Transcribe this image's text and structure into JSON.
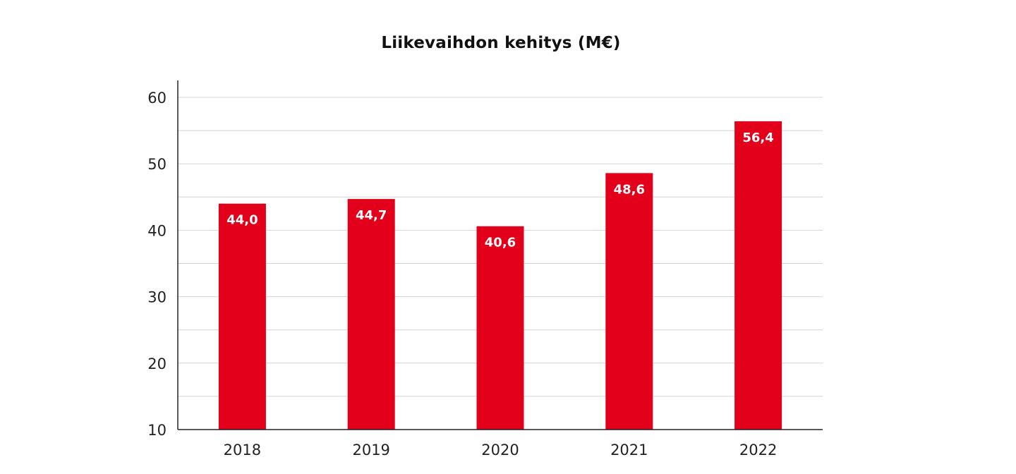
{
  "chart_data": {
    "type": "bar",
    "title": "Liikevaihdon kehitys (M€)",
    "xlabel": "",
    "ylabel": "",
    "categories": [
      "2018",
      "2019",
      "2020",
      "2021",
      "2022"
    ],
    "values": [
      44.0,
      44.7,
      40.6,
      48.6,
      56.4
    ],
    "value_labels": [
      "44,0",
      "44,7",
      "40,6",
      "48,6",
      "56,4"
    ],
    "ylim": [
      10,
      60
    ],
    "yticks": [
      10,
      20,
      30,
      40,
      50,
      60
    ],
    "ytick_labels": [
      "10",
      "20",
      "30",
      "40",
      "50",
      "60"
    ],
    "grid": true,
    "legend": "none",
    "bar_color": "#e2001a",
    "grid_color": "#d4d4d4",
    "axis_color": "#222222"
  }
}
